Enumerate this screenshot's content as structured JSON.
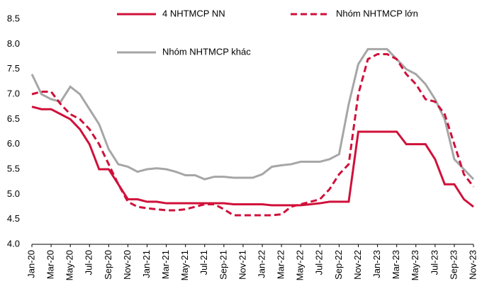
{
  "chart_data": {
    "type": "line",
    "categories": [
      "Jan-20",
      null,
      "Mar-20",
      null,
      "May-20",
      null,
      "Jul-20",
      null,
      "Sep-20",
      null,
      "Nov-20",
      null,
      "Jan-21",
      null,
      "Mar-21",
      null,
      "May-21",
      null,
      "Jul-21",
      null,
      "Sep-21",
      null,
      "Nov-21",
      null,
      "Jan-22",
      null,
      "Mar-22",
      null,
      "May-22",
      null,
      "Jul-22",
      null,
      "Sep-22",
      null,
      "Nov-22",
      null,
      "Jan-23",
      null,
      "Mar-23",
      null,
      "May-23",
      null,
      "Jul-23",
      null,
      "Sep-23",
      null,
      "Nov-23"
    ],
    "series": [
      {
        "name": "4 NHTMCP NN",
        "color": "#d0103a",
        "style": "solid",
        "values": [
          6.75,
          6.7,
          6.7,
          6.6,
          6.5,
          6.3,
          6.0,
          5.5,
          5.5,
          5.2,
          4.9,
          4.9,
          4.85,
          4.85,
          4.82,
          4.82,
          4.82,
          4.82,
          4.82,
          4.82,
          4.82,
          4.8,
          4.8,
          4.8,
          4.8,
          4.78,
          4.78,
          4.78,
          4.78,
          4.8,
          4.82,
          4.85,
          4.85,
          4.85,
          6.25,
          6.25,
          6.25,
          6.25,
          6.25,
          6.0,
          6.0,
          6.0,
          5.7,
          5.2,
          5.2,
          4.9,
          4.75
        ]
      },
      {
        "name": "Nhóm NHTMCP lớn",
        "color": "#d0103a",
        "style": "dashed",
        "values": [
          7.0,
          7.05,
          7.05,
          6.8,
          6.6,
          6.5,
          6.3,
          6.0,
          5.6,
          5.2,
          4.85,
          4.75,
          4.72,
          4.7,
          4.68,
          4.68,
          4.7,
          4.75,
          4.8,
          4.8,
          4.7,
          4.58,
          4.58,
          4.58,
          4.58,
          4.58,
          4.6,
          4.75,
          4.8,
          4.85,
          4.9,
          5.1,
          5.4,
          5.6,
          7.0,
          7.7,
          7.8,
          7.8,
          7.7,
          7.4,
          7.2,
          6.9,
          6.85,
          6.6,
          6.0,
          5.4,
          5.15
        ]
      },
      {
        "name": "Nhóm NHTMCP khác",
        "color": "#a6a6a6",
        "style": "solid",
        "values": [
          7.4,
          7.0,
          6.9,
          6.85,
          7.15,
          7.0,
          6.7,
          6.4,
          5.9,
          5.6,
          5.55,
          5.45,
          5.5,
          5.52,
          5.5,
          5.45,
          5.38,
          5.38,
          5.3,
          5.35,
          5.35,
          5.33,
          5.33,
          5.33,
          5.4,
          5.55,
          5.58,
          5.6,
          5.65,
          5.65,
          5.65,
          5.7,
          5.8,
          6.8,
          7.6,
          7.9,
          7.9,
          7.9,
          7.7,
          7.5,
          7.4,
          7.2,
          6.9,
          6.5,
          5.7,
          5.5,
          5.3
        ]
      }
    ],
    "ylim": [
      4.0,
      8.5
    ],
    "yticks": [
      {
        "value": 4.0,
        "label": "4.0"
      },
      4.5,
      {
        "value": 5.0,
        "label": "5.0"
      },
      5.5,
      {
        "value": 6.0,
        "label": "6.0"
      },
      6.5,
      {
        "value": 7.0,
        "label": "7.0"
      },
      7.5,
      {
        "value": 8.0,
        "label": "8.0"
      },
      8.5
    ],
    "grid": false
  }
}
